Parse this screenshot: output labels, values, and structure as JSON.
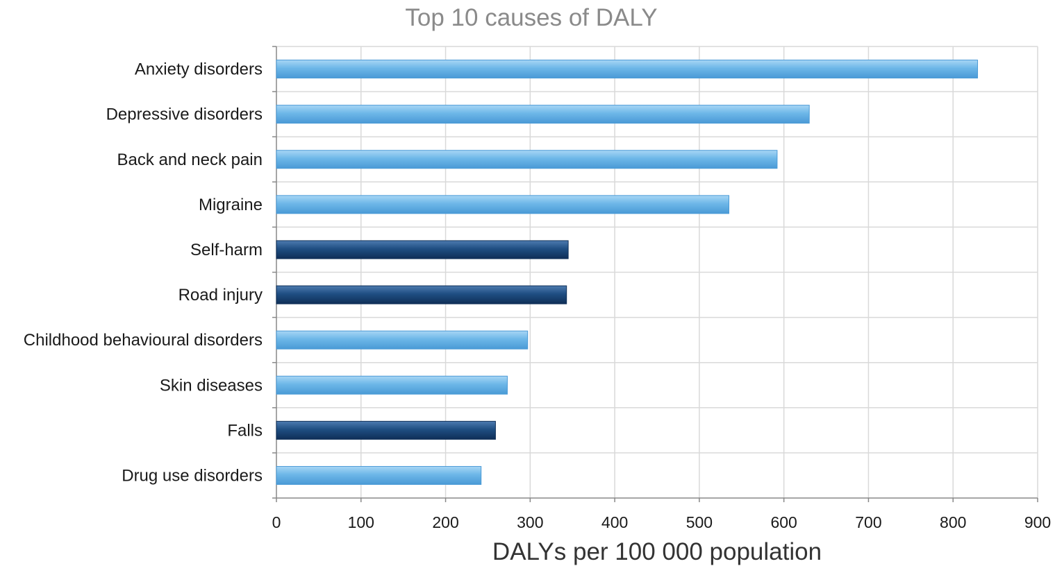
{
  "chart_data": {
    "type": "bar",
    "orientation": "horizontal",
    "title": "Top 10 causes of DALY",
    "xlabel": "DALYs per 100 000 population",
    "ylabel": "",
    "xlim": [
      0,
      900
    ],
    "xticks": [
      0,
      100,
      200,
      300,
      400,
      500,
      600,
      700,
      800,
      900
    ],
    "grid": true,
    "categories": [
      "Anxiety disorders",
      "Depressive disorders",
      "Back and neck pain",
      "Migraine",
      "Self-harm",
      "Road injury",
      "Childhood behavioural disorders",
      "Skin diseases",
      "Falls",
      "Drug use disorders"
    ],
    "values": [
      829,
      630,
      592,
      535,
      345,
      343,
      297,
      273,
      259,
      242
    ],
    "bar_groups": [
      "light",
      "light",
      "light",
      "light",
      "dark",
      "dark",
      "light",
      "light",
      "dark",
      "light"
    ],
    "colors": {
      "light": "#6db7e8",
      "light_top": "#a8d6f5",
      "light_bottom": "#4a9ad6",
      "dark": "#1f4e82",
      "dark_top": "#4d7bb0",
      "dark_bottom": "#0f2f57",
      "grid": "#d9d9d9",
      "axis": "#888888"
    }
  }
}
